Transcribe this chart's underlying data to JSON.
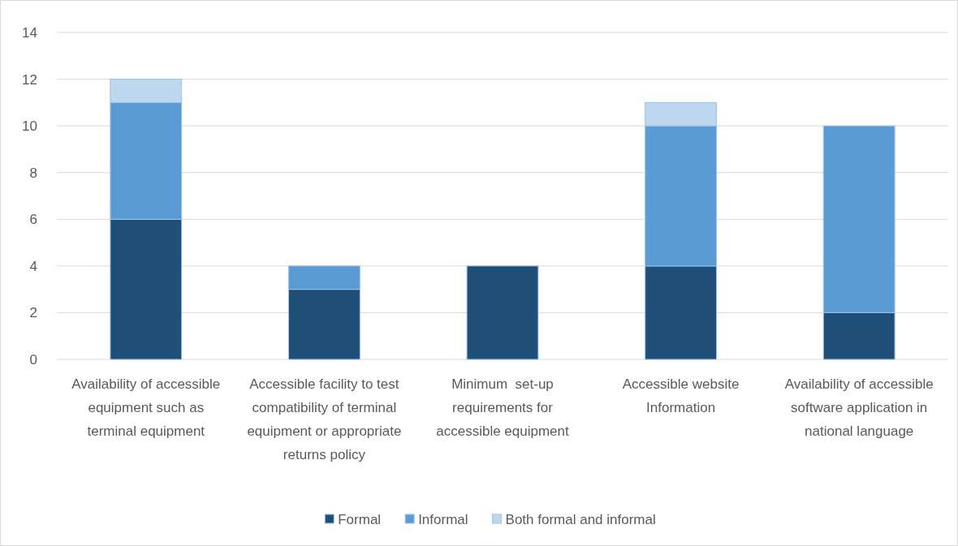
{
  "chart_data": {
    "type": "bar",
    "stacked": true,
    "categories": [
      "Availability of accessible equipment such as terminal equipment",
      "Accessible facility to test compatibility of terminal equipment or appropriate returns policy",
      "Minimum  set-up requirements for accessible equipment",
      "Accessible website Information",
      "Availability of accessible software application in national language"
    ],
    "series": [
      {
        "name": "Formal",
        "color": "#1f4e79",
        "values": [
          6,
          3,
          4,
          4,
          2
        ]
      },
      {
        "name": "Informal",
        "color": "#5b9bd5",
        "values": [
          5,
          1,
          null,
          6,
          8
        ]
      },
      {
        "name": "Both formal and informal",
        "color": "#bdd7ee",
        "values": [
          1,
          null,
          null,
          1,
          null
        ]
      }
    ],
    "ylim": [
      0,
      14
    ],
    "yticks": [
      0,
      2,
      4,
      6,
      8,
      10,
      12,
      14
    ],
    "grid": "y",
    "legend": "bottom"
  }
}
